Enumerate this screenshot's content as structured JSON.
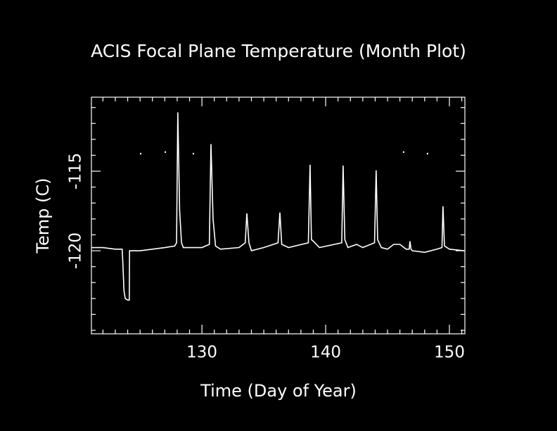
{
  "chart_data": {
    "type": "line",
    "title": "ACIS Focal Plane Temperature (Month Plot)",
    "x_label": "Time (Day of Year)",
    "y_label": "Temp (C)",
    "xlim": [
      121.07,
      151.25
    ],
    "ylim": [
      -125.22,
      -110.35
    ],
    "xticks": [
      130,
      140,
      150
    ],
    "yticks": [
      -120,
      -115
    ],
    "xminorticks": [
      122,
      123,
      124,
      125,
      126,
      127,
      128,
      129,
      131,
      132,
      133,
      134,
      135,
      136,
      137,
      138,
      139,
      141,
      142,
      143,
      144,
      145,
      146,
      147,
      148,
      149,
      151
    ],
    "yminorticks": [
      -125,
      -124,
      -123,
      -122,
      -121,
      -119,
      -118,
      -117,
      -116,
      -114,
      -113,
      -112,
      -111
    ],
    "series": [
      {
        "color": "#ffffff",
        "x": [
          121.1,
          122.0,
          123.0,
          123.55,
          123.6,
          123.7,
          123.8,
          124.0,
          124.13,
          124.15,
          124.2,
          125.0,
          126.0,
          127.0,
          127.8,
          127.95,
          128.05,
          128.2,
          128.35,
          128.5,
          130.0,
          130.6,
          130.73,
          130.9,
          131.1,
          131.5,
          133.0,
          133.5,
          133.63,
          133.8,
          134.0,
          135.0,
          136.15,
          136.3,
          136.45,
          137.0,
          138.6,
          138.74,
          138.85,
          139.0,
          139.5,
          141.3,
          141.41,
          141.55,
          141.8,
          142.5,
          143.0,
          143.95,
          144.08,
          144.2,
          144.5,
          145.0,
          145.5,
          146.0,
          146.5,
          146.75,
          146.81,
          146.9,
          147.0,
          148.0,
          149.0,
          149.4,
          149.48,
          149.6,
          150.0,
          151.2
        ],
        "values": [
          -119.8,
          -119.8,
          -119.9,
          -119.9,
          -120.6,
          -122.5,
          -123.0,
          -123.1,
          -123.1,
          -120.0,
          -120.0,
          -120.0,
          -119.9,
          -119.8,
          -119.7,
          -119.5,
          -111.3,
          -117.5,
          -119.5,
          -119.8,
          -119.8,
          -119.6,
          -113.3,
          -118.0,
          -119.7,
          -119.9,
          -119.8,
          -119.5,
          -117.65,
          -119.5,
          -120.0,
          -119.8,
          -119.5,
          -117.6,
          -119.6,
          -119.8,
          -119.5,
          -114.6,
          -119.3,
          -119.4,
          -119.8,
          -119.5,
          -114.65,
          -119.3,
          -119.8,
          -119.6,
          -119.8,
          -119.5,
          -114.95,
          -119.3,
          -119.8,
          -119.9,
          -119.6,
          -119.6,
          -119.9,
          -119.9,
          -119.4,
          -119.9,
          -120.0,
          -120.1,
          -119.9,
          -119.8,
          -117.2,
          -119.7,
          -119.9,
          -120.0
        ]
      },
      {
        "color": "#ffffff",
        "x": [
          125.05,
          127.04,
          129.31,
          146.3,
          148.23
        ],
        "values": [
          -113.9,
          -113.8,
          -113.9,
          -113.8,
          -113.9
        ]
      }
    ]
  }
}
